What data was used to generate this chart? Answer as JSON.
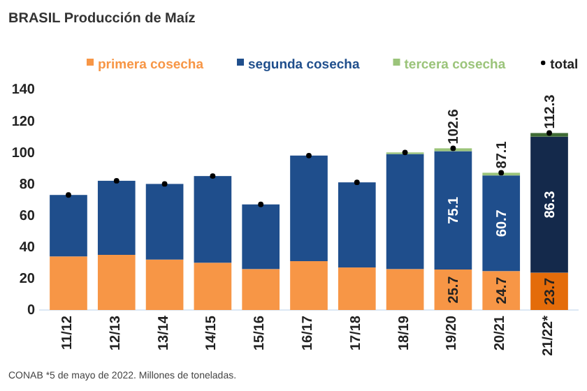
{
  "chart_data": {
    "type": "bar",
    "title": "BRASIL  Producción de Maíz",
    "stacked": true,
    "legend": "top",
    "marker": "circle",
    "categories": [
      "11/12",
      "12/13",
      "13/14",
      "14/15",
      "15/16",
      "16/17",
      "17/18",
      "18/19",
      "19/20",
      "20/21",
      "21/22*"
    ],
    "ylim": [
      0,
      140
    ],
    "yticks": [
      0,
      20,
      40,
      60,
      80,
      100,
      120,
      140
    ],
    "series": [
      {
        "name": "primera cosecha",
        "color": "#f79646",
        "colors": [
          "#f79646",
          "#f79646",
          "#f79646",
          "#f79646",
          "#f79646",
          "#f79646",
          "#f79646",
          "#f79646",
          "#f79646",
          "#f79646",
          "#e46c0a"
        ],
        "values": [
          34,
          35,
          32,
          30,
          26,
          31,
          27,
          26,
          25.7,
          24.7,
          23.7
        ],
        "value_labels": [
          null,
          null,
          null,
          null,
          null,
          null,
          null,
          null,
          "25.7",
          "24.7",
          "23.7"
        ]
      },
      {
        "name": "segunda cosecha",
        "color": "#1f4e8c",
        "colors": [
          "#1f4e8c",
          "#1f4e8c",
          "#1f4e8c",
          "#1f4e8c",
          "#1f4e8c",
          "#1f4e8c",
          "#1f4e8c",
          "#1f4e8c",
          "#1f4e8c",
          "#1f4e8c",
          "#14294b"
        ],
        "values": [
          39,
          47,
          48,
          55,
          41,
          67,
          54,
          73,
          75.1,
          60.7,
          86.3
        ],
        "value_labels": [
          null,
          null,
          null,
          null,
          null,
          null,
          null,
          null,
          "75.1",
          "60.7",
          "86.3"
        ]
      },
      {
        "name": "tercera cosecha",
        "color": "#9bc47a",
        "colors": [
          null,
          null,
          null,
          null,
          null,
          null,
          null,
          "#9bc47a",
          "#9bc47a",
          "#9bc47a",
          "#3f6b35"
        ],
        "values": [
          null,
          null,
          null,
          null,
          null,
          null,
          null,
          1,
          1.8,
          1.7,
          2.3
        ]
      },
      {
        "name": "total",
        "type": "scatter",
        "color": "#000000",
        "values": [
          73,
          82,
          80,
          85,
          67,
          98,
          81,
          100,
          102.6,
          87.1,
          112.3
        ],
        "value_labels": [
          null,
          null,
          null,
          null,
          null,
          null,
          null,
          null,
          "102.6",
          "87.1",
          "112.3"
        ]
      }
    ],
    "annotations": [
      "CONAB   *5 de mayo de 2022.  Millones de toneladas."
    ]
  }
}
